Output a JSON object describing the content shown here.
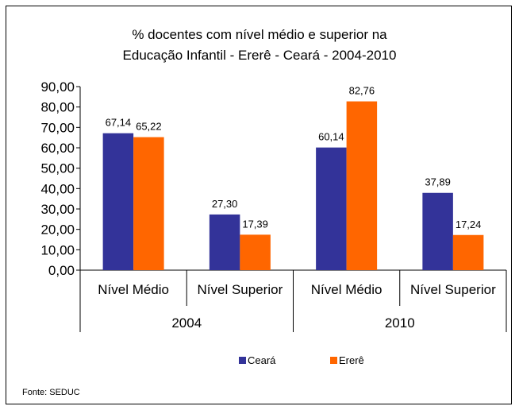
{
  "chart_data": {
    "type": "bar",
    "title": "% docentes com nível médio e superior na",
    "subtitle": "Educação Infantil - Ererê -  Ceará - 2004-2010",
    "groups": [
      {
        "label": "2004",
        "categories": [
          "Nível Médio",
          "Nível Superior"
        ]
      },
      {
        "label": "2010",
        "categories": [
          "Nível Médio",
          "Nível Superior"
        ]
      }
    ],
    "categories": [
      "Nível Médio",
      "Nível Superior",
      "Nível Médio",
      "Nível Superior"
    ],
    "series": [
      {
        "name": "Ceará",
        "color": "#333399",
        "values": [
          67.14,
          27.3,
          60.14,
          37.89
        ],
        "labels": [
          "67,14",
          "27,30",
          "60,14",
          "37,89"
        ]
      },
      {
        "name": "Ererê",
        "color": "#FF6600",
        "values": [
          65.22,
          17.39,
          82.76,
          17.24
        ],
        "labels": [
          "65,22",
          "17,39",
          "82,76",
          "17,24"
        ]
      }
    ],
    "ylim": [
      0,
      90
    ],
    "yticks": [
      "0,00",
      "10,00",
      "20,00",
      "30,00",
      "40,00",
      "50,00",
      "60,00",
      "70,00",
      "80,00",
      "90,00"
    ],
    "grid": false,
    "legend": "bottom",
    "source": "Fonte: SEDUC"
  }
}
